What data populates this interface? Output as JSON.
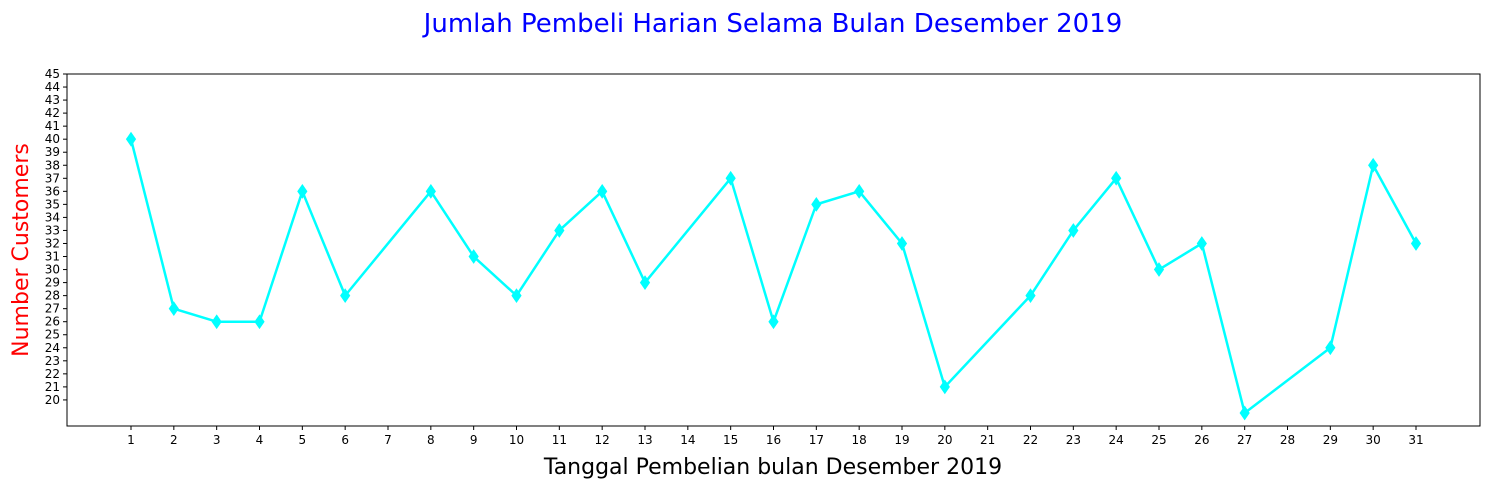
{
  "chart_data": {
    "type": "line",
    "title": "Jumlah Pembeli Harian Selama Bulan Desember 2019",
    "xlabel": "Tanggal Pembelian bulan Desember 2019",
    "ylabel": "Number Customers",
    "categories": [
      "1",
      "2",
      "3",
      "4",
      "5",
      "6",
      "7",
      "8",
      "9",
      "10",
      "11",
      "12",
      "13",
      "14",
      "15",
      "16",
      "17",
      "18",
      "19",
      "20",
      "21",
      "22",
      "23",
      "24",
      "25",
      "26",
      "27",
      "28",
      "29",
      "30",
      "31"
    ],
    "series": [
      {
        "points": [
          {
            "x": "1",
            "y": 40
          },
          {
            "x": "2",
            "y": 27
          },
          {
            "x": "3",
            "y": 26
          },
          {
            "x": "4",
            "y": 26
          },
          {
            "x": "5",
            "y": 36
          },
          {
            "x": "6",
            "y": 28
          },
          {
            "x": "8",
            "y": 36
          },
          {
            "x": "9",
            "y": 31
          },
          {
            "x": "10",
            "y": 28
          },
          {
            "x": "11",
            "y": 33
          },
          {
            "x": "12",
            "y": 36
          },
          {
            "x": "13",
            "y": 29
          },
          {
            "x": "15",
            "y": 37
          },
          {
            "x": "16",
            "y": 26
          },
          {
            "x": "17",
            "y": 35
          },
          {
            "x": "18",
            "y": 36
          },
          {
            "x": "19",
            "y": 32
          },
          {
            "x": "20",
            "y": 21
          },
          {
            "x": "22",
            "y": 28
          },
          {
            "x": "23",
            "y": 33
          },
          {
            "x": "24",
            "y": 37
          },
          {
            "x": "25",
            "y": 30
          },
          {
            "x": "26",
            "y": 32
          },
          {
            "x": "27",
            "y": 19
          },
          {
            "x": "29",
            "y": 24
          },
          {
            "x": "30",
            "y": 38
          },
          {
            "x": "31",
            "y": 32
          }
        ]
      }
    ],
    "yticks": [
      20,
      21,
      22,
      23,
      24,
      25,
      26,
      27,
      28,
      29,
      30,
      31,
      32,
      33,
      34,
      35,
      36,
      37,
      38,
      39,
      40,
      41,
      42,
      43,
      44,
      45
    ],
    "ylim": [
      18,
      45
    ],
    "grid": false,
    "marker": "diamond",
    "colors": {
      "line": "#00ffff",
      "title": "#0000ff",
      "ylabel": "#ff0000",
      "xlabel": "#000000"
    }
  }
}
